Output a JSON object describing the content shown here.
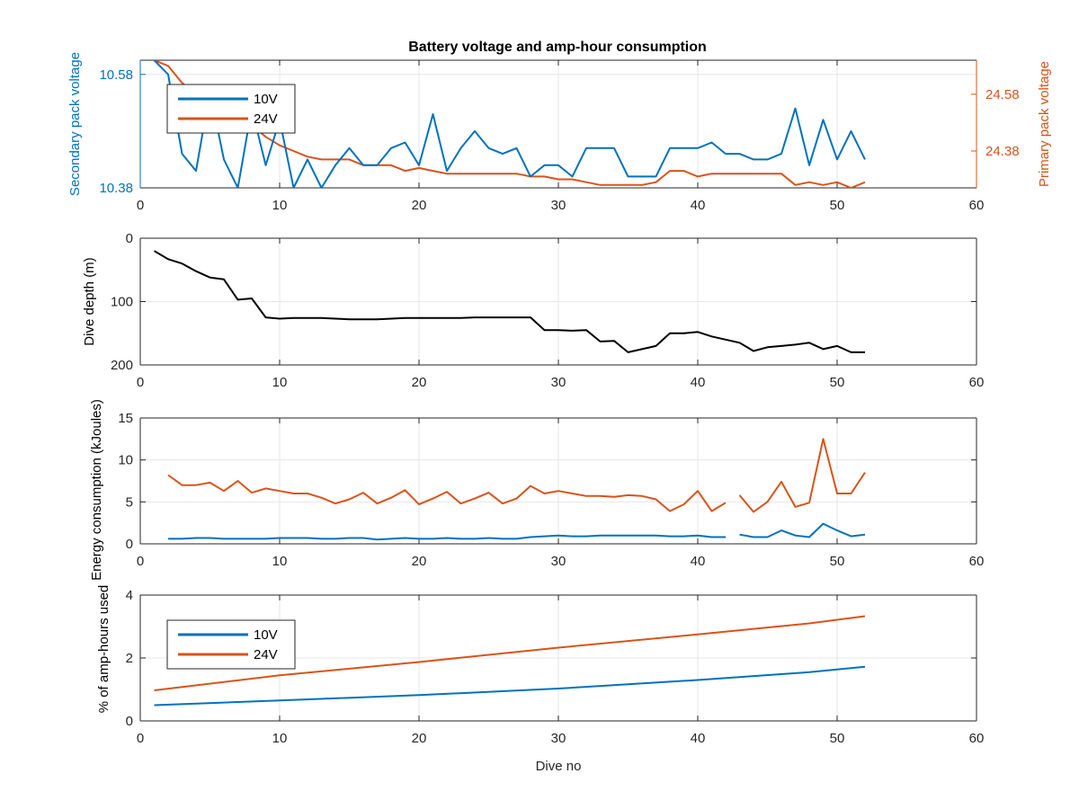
{
  "figure": {
    "title": "Battery voltage and amp-hour consumption",
    "colors": {
      "blue": "#0072bd",
      "orange": "#d95319",
      "black": "#000000",
      "grid": "#e6e6e6"
    }
  },
  "chart_data": [
    {
      "type": "line",
      "title": "Battery voltage and amp-hour consumption",
      "xlabel": "",
      "xlim": [
        0,
        60
      ],
      "xticks": [
        "0",
        "10",
        "20",
        "30",
        "40",
        "50",
        "60"
      ],
      "ylabel_left": "Secondary pack voltage",
      "ylim_left": [
        10.38,
        10.605
      ],
      "yticks_left": [
        "10.38",
        "10.58"
      ],
      "ylabel_right": "Primary pack voltage",
      "ylim_right": [
        24.25,
        24.7
      ],
      "yticks_right": [
        "24.38",
        "24.58"
      ],
      "grid": true,
      "legend": {
        "position": "top-left",
        "entries": [
          "10V",
          "24V"
        ]
      },
      "series": [
        {
          "name": "10V",
          "axis": "left",
          "color": "blue",
          "x": [
            1,
            2,
            3,
            4,
            5,
            6,
            7,
            8,
            9,
            10,
            11,
            12,
            13,
            14,
            15,
            16,
            17,
            18,
            19,
            20,
            21,
            22,
            23,
            24,
            25,
            26,
            27,
            28,
            29,
            30,
            31,
            32,
            33,
            34,
            35,
            36,
            37,
            38,
            39,
            40,
            41,
            42,
            43,
            44,
            45,
            46,
            47,
            48,
            49,
            50,
            51,
            52
          ],
          "y": [
            10.605,
            10.58,
            10.44,
            10.41,
            10.55,
            10.43,
            10.38,
            10.52,
            10.42,
            10.5,
            10.38,
            10.43,
            10.38,
            10.42,
            10.45,
            10.42,
            10.42,
            10.45,
            10.46,
            10.42,
            10.51,
            10.41,
            10.45,
            10.48,
            10.45,
            10.44,
            10.45,
            10.4,
            10.42,
            10.42,
            10.4,
            10.45,
            10.45,
            10.45,
            10.4,
            10.4,
            10.4,
            10.45,
            10.45,
            10.45,
            10.46,
            10.44,
            10.44,
            10.43,
            10.43,
            10.44,
            10.52,
            10.42,
            10.5,
            10.43,
            10.48,
            10.43
          ]
        },
        {
          "name": "24V",
          "axis": "right",
          "color": "orange",
          "x": [
            1,
            2,
            3,
            4,
            5,
            6,
            7,
            8,
            9,
            10,
            11,
            12,
            13,
            14,
            15,
            16,
            17,
            18,
            19,
            20,
            21,
            22,
            23,
            24,
            25,
            26,
            27,
            28,
            29,
            30,
            31,
            32,
            33,
            34,
            35,
            36,
            37,
            38,
            39,
            40,
            41,
            42,
            43,
            44,
            45,
            46,
            47,
            48,
            49,
            50,
            51,
            52
          ],
          "y": [
            24.7,
            24.68,
            24.62,
            24.58,
            24.55,
            24.52,
            24.5,
            24.47,
            24.43,
            24.4,
            24.38,
            24.36,
            24.35,
            24.35,
            24.35,
            24.33,
            24.33,
            24.33,
            24.31,
            24.32,
            24.31,
            24.3,
            24.3,
            24.3,
            24.3,
            24.3,
            24.3,
            24.29,
            24.29,
            24.28,
            24.28,
            24.27,
            24.26,
            24.26,
            24.26,
            24.26,
            24.27,
            24.31,
            24.31,
            24.29,
            24.3,
            24.3,
            24.3,
            24.3,
            24.3,
            24.3,
            24.26,
            24.27,
            24.26,
            24.27,
            24.25,
            24.27
          ]
        }
      ]
    },
    {
      "type": "line",
      "xlabel": "",
      "ylabel": "Dive depth (m)",
      "xlim": [
        0,
        60
      ],
      "ylim": [
        0,
        200
      ],
      "y_reversed": true,
      "xticks": [
        "0",
        "10",
        "20",
        "30",
        "40",
        "50",
        "60"
      ],
      "yticks": [
        "0",
        "100",
        "200"
      ],
      "grid": true,
      "series": [
        {
          "color": "black",
          "x": [
            1,
            2,
            3,
            4,
            5,
            6,
            7,
            8,
            9,
            10,
            11,
            12,
            13,
            14,
            15,
            16,
            17,
            18,
            19,
            20,
            21,
            22,
            23,
            24,
            25,
            26,
            27,
            28,
            29,
            30,
            31,
            32,
            33,
            34,
            35,
            36,
            37,
            38,
            39,
            40,
            41,
            42,
            43,
            44,
            45,
            46,
            47,
            48,
            49,
            50,
            51,
            52
          ],
          "y": [
            20,
            33,
            40,
            52,
            62,
            65,
            97,
            95,
            125,
            127,
            126,
            126,
            126,
            127,
            128,
            128,
            128,
            127,
            126,
            126,
            126,
            126,
            126,
            125,
            125,
            125,
            125,
            125,
            145,
            145,
            146,
            145,
            163,
            162,
            180,
            175,
            170,
            150,
            150,
            148,
            155,
            160,
            165,
            178,
            172,
            170,
            168,
            165,
            175,
            170,
            180,
            180
          ]
        }
      ]
    },
    {
      "type": "line",
      "xlabel": "",
      "ylabel": "Energy consumption (kJoules)",
      "xlim": [
        0,
        60
      ],
      "ylim": [
        0,
        15
      ],
      "xticks": [
        "0",
        "10",
        "20",
        "30",
        "40",
        "50",
        "60"
      ],
      "yticks": [
        "0",
        "5",
        "10",
        "15"
      ],
      "grid": true,
      "series": [
        {
          "color": "orange",
          "x": [
            2,
            3,
            4,
            5,
            6,
            7,
            8,
            9,
            10,
            11,
            12,
            13,
            14,
            15,
            16,
            17,
            18,
            19,
            20,
            21,
            22,
            23,
            24,
            25,
            26,
            27,
            28,
            29,
            30,
            31,
            32,
            33,
            34,
            35,
            36,
            37,
            38,
            39,
            40,
            41,
            42,
            null,
            43,
            44,
            45,
            46,
            47,
            48,
            49,
            50,
            51,
            52
          ],
          "y": [
            8.2,
            7,
            7,
            7.3,
            6.3,
            7.5,
            6.1,
            6.6,
            6.3,
            6,
            6,
            5.5,
            4.8,
            5.3,
            6.1,
            4.8,
            5.5,
            6.4,
            4.7,
            5.4,
            6.2,
            4.8,
            5.4,
            6.1,
            4.8,
            5.4,
            6.9,
            6,
            6.3,
            6,
            5.7,
            5.7,
            5.6,
            5.8,
            5.7,
            5.3,
            3.9,
            4.7,
            6.3,
            3.9,
            4.9,
            null,
            5.8,
            3.8,
            5,
            7.4,
            4.4,
            4.9,
            12.5,
            6,
            6,
            8.5
          ]
        },
        {
          "color": "blue",
          "x": [
            2,
            3,
            4,
            5,
            6,
            7,
            8,
            9,
            10,
            11,
            12,
            13,
            14,
            15,
            16,
            17,
            18,
            19,
            20,
            21,
            22,
            23,
            24,
            25,
            26,
            27,
            28,
            29,
            30,
            31,
            32,
            33,
            34,
            35,
            36,
            37,
            38,
            39,
            40,
            41,
            42,
            null,
            43,
            44,
            45,
            46,
            47,
            48,
            49,
            50,
            51,
            52
          ],
          "y": [
            0.6,
            0.6,
            0.7,
            0.7,
            0.6,
            0.6,
            0.6,
            0.6,
            0.7,
            0.7,
            0.7,
            0.6,
            0.6,
            0.7,
            0.7,
            0.5,
            0.6,
            0.7,
            0.6,
            0.6,
            0.7,
            0.6,
            0.6,
            0.7,
            0.6,
            0.6,
            0.8,
            0.9,
            1,
            0.9,
            0.9,
            1,
            1,
            1,
            1,
            1,
            0.9,
            0.9,
            1,
            0.8,
            0.8,
            null,
            1.1,
            0.8,
            0.8,
            1.6,
            1,
            0.8,
            2.4,
            1.6,
            0.9,
            1.1
          ]
        }
      ]
    },
    {
      "type": "line",
      "xlabel": "Dive no",
      "ylabel": "% of amp-hours used",
      "xlim": [
        0,
        60
      ],
      "ylim": [
        0,
        4
      ],
      "xticks": [
        "0",
        "10",
        "20",
        "30",
        "40",
        "50",
        "60"
      ],
      "yticks": [
        "0",
        "2",
        "4"
      ],
      "grid": true,
      "legend": {
        "position": "top-left",
        "entries": [
          "10V",
          "24V"
        ]
      },
      "series": [
        {
          "name": "10V",
          "color": "blue",
          "x": [
            1,
            10,
            20,
            30,
            40,
            48,
            52
          ],
          "y": [
            0.5,
            0.65,
            0.82,
            1.03,
            1.3,
            1.55,
            1.72
          ]
        },
        {
          "name": "24V",
          "color": "orange",
          "x": [
            1,
            10,
            20,
            30,
            40,
            48,
            52
          ],
          "y": [
            0.97,
            1.45,
            1.87,
            2.33,
            2.75,
            3.1,
            3.33
          ]
        }
      ]
    }
  ]
}
